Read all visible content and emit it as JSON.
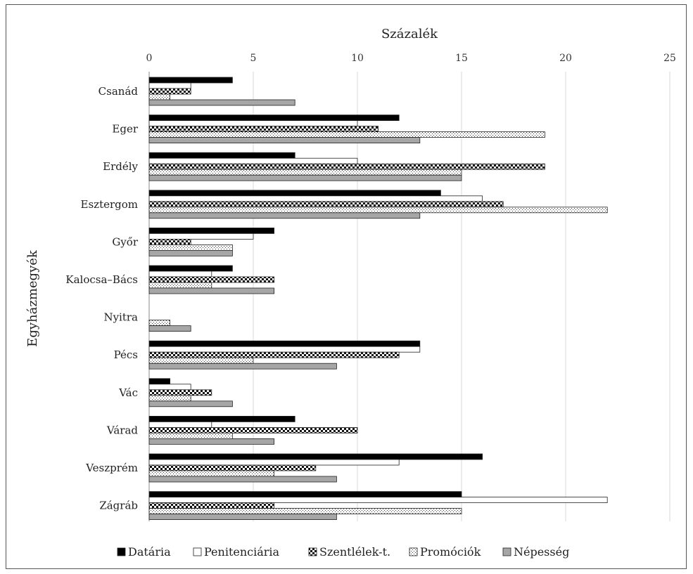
{
  "chart_data": {
    "type": "bar",
    "orientation": "horizontal",
    "xlabel": "Százalék",
    "ylabel": "Egyházmegyék",
    "xlim": [
      0,
      25
    ],
    "xticks": [
      0,
      5,
      10,
      15,
      20,
      25
    ],
    "grid": true,
    "legend_position": "bottom",
    "categories": [
      "Csanád",
      "Eger",
      "Erdély",
      "Esztergom",
      "Győr",
      "Kalocsa–Bács",
      "Nyitra",
      "Pécs",
      "Vác",
      "Várad",
      "Veszprém",
      "Zágráb"
    ],
    "series": [
      {
        "name": "Datária",
        "pattern": "solid-black",
        "values": [
          4,
          12,
          7,
          14,
          6,
          4,
          0,
          13,
          1,
          7,
          16,
          15
        ]
      },
      {
        "name": "Penitenciária",
        "pattern": "white",
        "values": [
          2,
          10,
          10,
          16,
          5,
          3,
          0,
          13,
          2,
          3,
          12,
          22
        ]
      },
      {
        "name": "Szentlélek-t.",
        "pattern": "checker",
        "values": [
          2,
          11,
          19,
          17,
          2,
          6,
          0,
          12,
          3,
          10,
          8,
          6
        ]
      },
      {
        "name": "Promóciók",
        "pattern": "dotted",
        "values": [
          1,
          19,
          15,
          22,
          4,
          3,
          1,
          5,
          2,
          4,
          6,
          15
        ]
      },
      {
        "name": "Népesség",
        "pattern": "gray",
        "values": [
          7,
          13,
          15,
          13,
          4,
          6,
          2,
          9,
          4,
          6,
          9,
          9
        ]
      }
    ]
  }
}
